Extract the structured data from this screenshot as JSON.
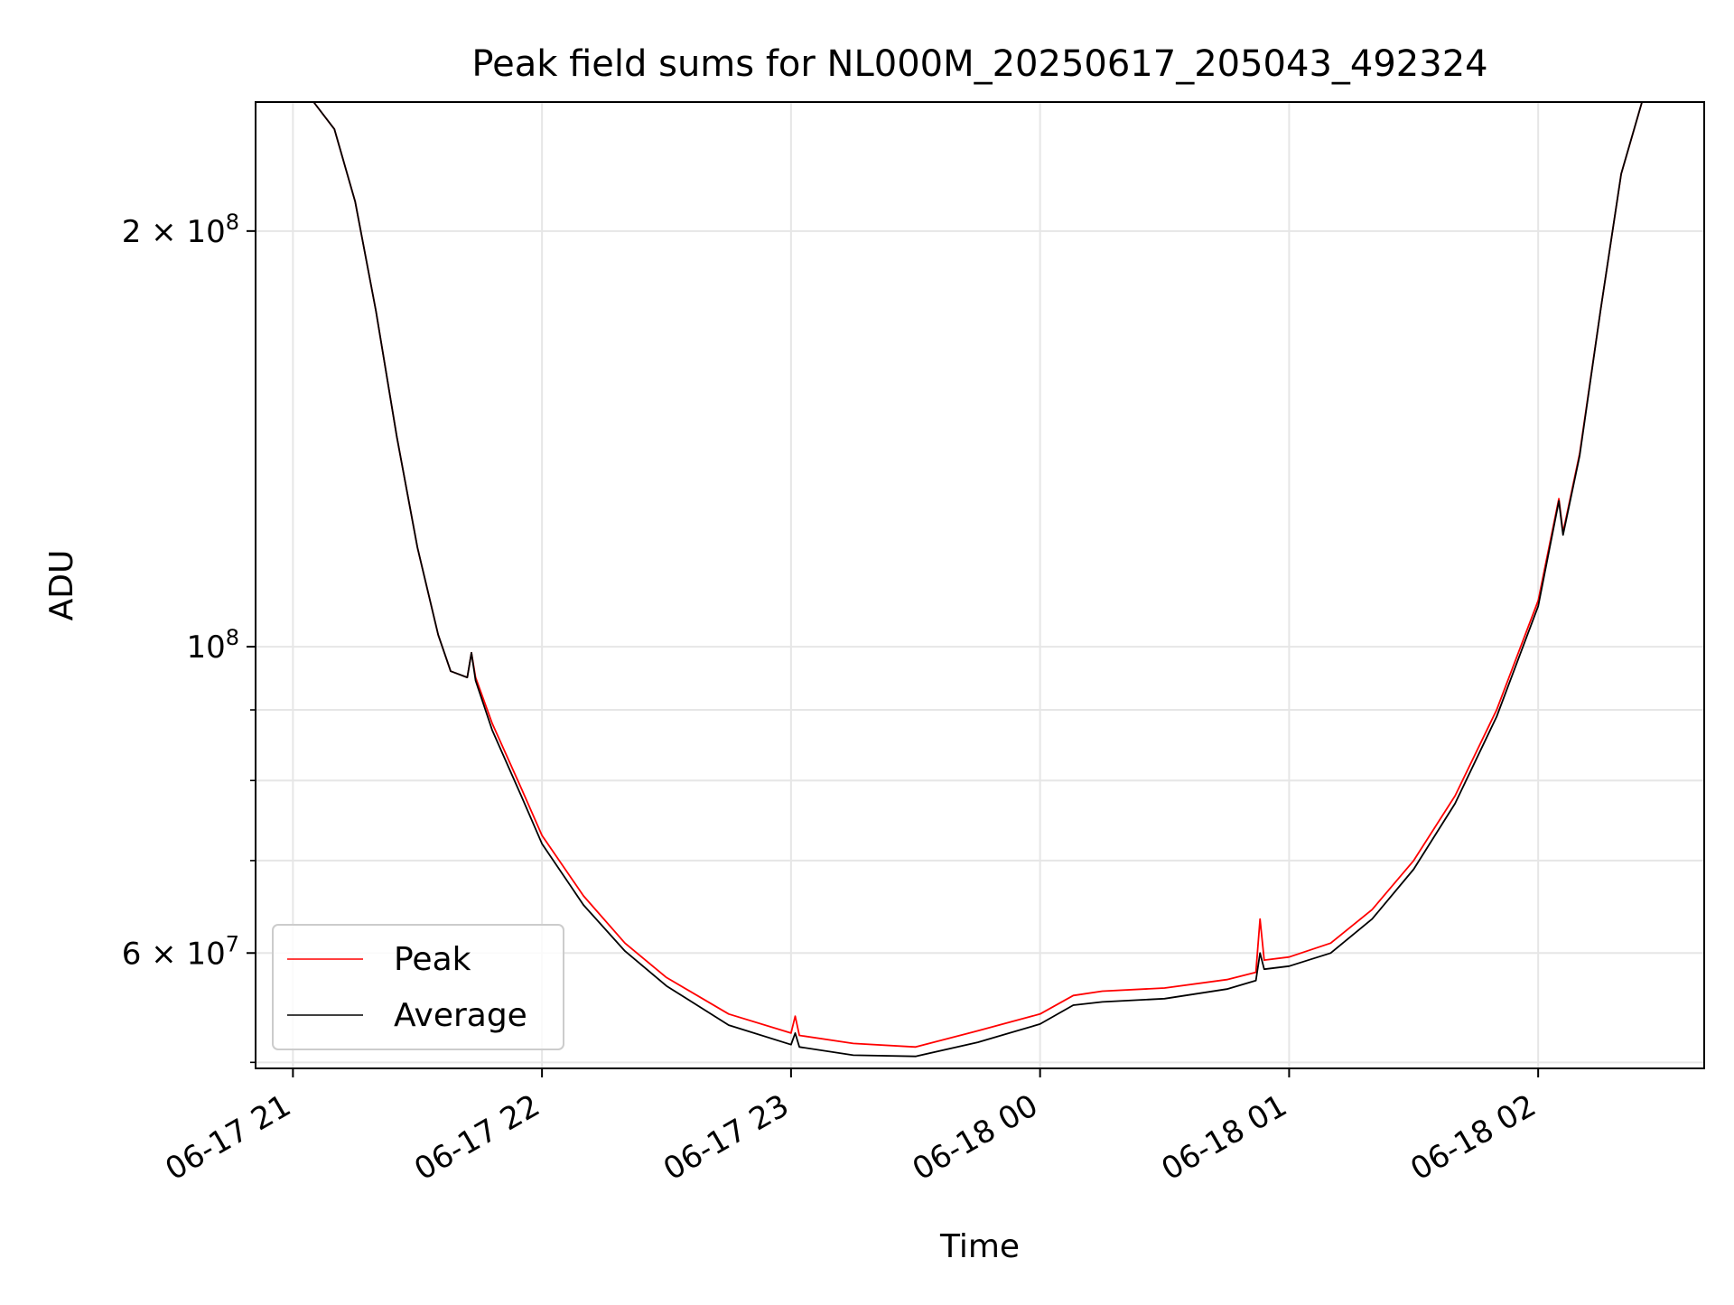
{
  "chart_data": {
    "type": "line",
    "title": "Peak field sums for NL000M_20250617_205043_492324",
    "xlabel": "Time",
    "ylabel": "ADU",
    "x_unit": "datetime",
    "xlim": [
      "2025-06-17 20:51",
      "2025-06-18 02:40"
    ],
    "ylim": [
      49500000,
      248000000
    ],
    "yscale": "log",
    "grid": true,
    "legend": {
      "position": "lower-left",
      "entries": [
        "Peak",
        "Average"
      ]
    },
    "x_ticks": [
      {
        "value": "2025-06-17 21:00",
        "label": "06-17 21"
      },
      {
        "value": "2025-06-17 22:00",
        "label": "06-17 22"
      },
      {
        "value": "2025-06-17 23:00",
        "label": "06-17 23"
      },
      {
        "value": "2025-06-18 00:00",
        "label": "06-18 00"
      },
      {
        "value": "2025-06-18 01:00",
        "label": "06-18 01"
      },
      {
        "value": "2025-06-18 02:00",
        "label": "06-18 02"
      }
    ],
    "y_ticks": [
      {
        "value": 60000000,
        "base": "6",
        "mult": "×",
        "mantissa": "10",
        "exp": "7"
      },
      {
        "value": 100000000,
        "base": "",
        "mult": "",
        "mantissa": "10",
        "exp": "8"
      },
      {
        "value": 200000000,
        "base": "2",
        "mult": "×",
        "mantissa": "10",
        "exp": "8"
      }
    ],
    "y_minor_ticks": [
      50000000,
      70000000,
      80000000,
      90000000
    ],
    "series": [
      {
        "name": "Peak",
        "color": "#ff0000",
        "points": [
          [
            "2025-06-17 20:51",
            248000000
          ],
          [
            "2025-06-17 21:00",
            248000000
          ],
          [
            "2025-06-17 21:05",
            248000000
          ],
          [
            "2025-06-17 21:10",
            237000000
          ],
          [
            "2025-06-17 21:15",
            210000000
          ],
          [
            "2025-06-17 21:20",
            175000000
          ],
          [
            "2025-06-17 21:25",
            142000000
          ],
          [
            "2025-06-17 21:30",
            118000000
          ],
          [
            "2025-06-17 21:35",
            102000000
          ],
          [
            "2025-06-17 21:38",
            96000000
          ],
          [
            "2025-06-17 21:42",
            95000000
          ],
          [
            "2025-06-17 21:43",
            99000000
          ],
          [
            "2025-06-17 21:44",
            95000000
          ],
          [
            "2025-06-17 21:48",
            88000000
          ],
          [
            "2025-06-17 21:55",
            79000000
          ],
          [
            "2025-06-17 22:00",
            73000000
          ],
          [
            "2025-06-17 22:10",
            66000000
          ],
          [
            "2025-06-17 22:20",
            61000000
          ],
          [
            "2025-06-17 22:30",
            57600000
          ],
          [
            "2025-06-17 22:45",
            54200000
          ],
          [
            "2025-06-17 23:00",
            52500000
          ],
          [
            "2025-06-17 23:01",
            54000000
          ],
          [
            "2025-06-17 23:02",
            52300000
          ],
          [
            "2025-06-17 23:15",
            51600000
          ],
          [
            "2025-06-17 23:30",
            51300000
          ],
          [
            "2025-06-17 23:45",
            52700000
          ],
          [
            "2025-06-18 00:00",
            54200000
          ],
          [
            "2025-06-18 00:08",
            55900000
          ],
          [
            "2025-06-18 00:15",
            56300000
          ],
          [
            "2025-06-18 00:30",
            56600000
          ],
          [
            "2025-06-18 00:45",
            57400000
          ],
          [
            "2025-06-18 00:52",
            58100000
          ],
          [
            "2025-06-18 00:53",
            63500000
          ],
          [
            "2025-06-18 00:54",
            59300000
          ],
          [
            "2025-06-18 01:00",
            59600000
          ],
          [
            "2025-06-18 01:10",
            61000000
          ],
          [
            "2025-06-18 01:20",
            64500000
          ],
          [
            "2025-06-18 01:30",
            70000000
          ],
          [
            "2025-06-18 01:40",
            78000000
          ],
          [
            "2025-06-18 01:50",
            90000000
          ],
          [
            "2025-06-18 02:00",
            108000000
          ],
          [
            "2025-06-18 02:05",
            128000000
          ],
          [
            "2025-06-18 02:06",
            121000000
          ],
          [
            "2025-06-18 02:10",
            138000000
          ],
          [
            "2025-06-18 02:15",
            175000000
          ],
          [
            "2025-06-18 02:20",
            220000000
          ],
          [
            "2025-06-18 02:25",
            248000000
          ],
          [
            "2025-06-18 02:40",
            248000000
          ]
        ]
      },
      {
        "name": "Average",
        "color": "#000000",
        "points": [
          [
            "2025-06-17 20:51",
            248000000
          ],
          [
            "2025-06-17 21:00",
            248000000
          ],
          [
            "2025-06-17 21:05",
            248000000
          ],
          [
            "2025-06-17 21:10",
            237000000
          ],
          [
            "2025-06-17 21:15",
            210000000
          ],
          [
            "2025-06-17 21:20",
            175000000
          ],
          [
            "2025-06-17 21:25",
            142000000
          ],
          [
            "2025-06-17 21:30",
            118000000
          ],
          [
            "2025-06-17 21:35",
            102000000
          ],
          [
            "2025-06-17 21:38",
            96000000
          ],
          [
            "2025-06-17 21:42",
            95000000
          ],
          [
            "2025-06-17 21:43",
            99000000
          ],
          [
            "2025-06-17 21:44",
            94500000
          ],
          [
            "2025-06-17 21:48",
            87000000
          ],
          [
            "2025-06-17 21:55",
            78000000
          ],
          [
            "2025-06-17 22:00",
            72000000
          ],
          [
            "2025-06-17 22:10",
            65000000
          ],
          [
            "2025-06-17 22:20",
            60200000
          ],
          [
            "2025-06-17 22:30",
            56800000
          ],
          [
            "2025-06-17 22:45",
            53200000
          ],
          [
            "2025-06-17 23:00",
            51500000
          ],
          [
            "2025-06-17 23:01",
            52500000
          ],
          [
            "2025-06-17 23:02",
            51300000
          ],
          [
            "2025-06-17 23:15",
            50600000
          ],
          [
            "2025-06-17 23:30",
            50500000
          ],
          [
            "2025-06-17 23:45",
            51700000
          ],
          [
            "2025-06-18 00:00",
            53300000
          ],
          [
            "2025-06-18 00:08",
            55000000
          ],
          [
            "2025-06-18 00:15",
            55300000
          ],
          [
            "2025-06-18 00:30",
            55600000
          ],
          [
            "2025-06-18 00:45",
            56500000
          ],
          [
            "2025-06-18 00:52",
            57300000
          ],
          [
            "2025-06-18 00:53",
            60000000
          ],
          [
            "2025-06-18 00:54",
            58400000
          ],
          [
            "2025-06-18 01:00",
            58700000
          ],
          [
            "2025-06-18 01:10",
            60000000
          ],
          [
            "2025-06-18 01:20",
            63500000
          ],
          [
            "2025-06-18 01:30",
            69000000
          ],
          [
            "2025-06-18 01:40",
            77000000
          ],
          [
            "2025-06-18 01:50",
            89000000
          ],
          [
            "2025-06-18 02:00",
            107000000
          ],
          [
            "2025-06-18 02:05",
            127500000
          ],
          [
            "2025-06-18 02:06",
            120500000
          ],
          [
            "2025-06-18 02:10",
            137500000
          ],
          [
            "2025-06-18 02:15",
            175000000
          ],
          [
            "2025-06-18 02:20",
            220000000
          ],
          [
            "2025-06-18 02:25",
            248000000
          ],
          [
            "2025-06-18 02:40",
            248000000
          ]
        ]
      }
    ]
  }
}
